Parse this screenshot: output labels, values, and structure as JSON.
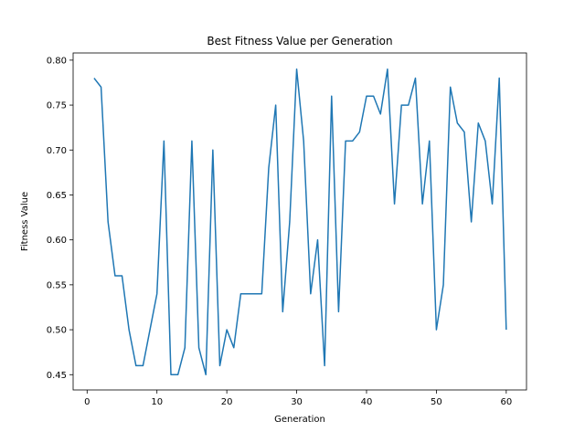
{
  "chart_data": {
    "type": "line",
    "title": "Best Fitness Value per Generation",
    "xlabel": "Generation",
    "ylabel": "Fitness Value",
    "xlim": [
      -2,
      62.9
    ],
    "ylim": [
      0.433,
      0.808
    ],
    "xticks": [
      0,
      10,
      20,
      30,
      40,
      50,
      60
    ],
    "xtick_labels": [
      "0",
      "10",
      "20",
      "30",
      "40",
      "50",
      "60"
    ],
    "yticks": [
      0.45,
      0.5,
      0.55,
      0.6,
      0.65,
      0.7,
      0.75,
      0.8
    ],
    "ytick_labels": [
      "0.45",
      "0.50",
      "0.55",
      "0.60",
      "0.65",
      "0.70",
      "0.75",
      "0.80"
    ],
    "grid": false,
    "series": [
      {
        "color": "#1f77b4",
        "x": [
          1,
          2,
          3,
          4,
          5,
          6,
          7,
          8,
          9,
          10,
          11,
          12,
          13,
          14,
          15,
          16,
          17,
          18,
          19,
          20,
          21,
          22,
          23,
          24,
          25,
          26,
          27,
          28,
          29,
          30,
          31,
          32,
          33,
          34,
          35,
          36,
          37,
          38,
          39,
          40,
          41,
          42,
          43,
          44,
          45,
          46,
          47,
          48,
          49,
          50,
          51,
          52,
          53,
          54,
          55,
          56,
          57,
          58,
          59,
          60
        ],
        "y": [
          0.78,
          0.77,
          0.62,
          0.56,
          0.56,
          0.5,
          0.46,
          0.46,
          0.5,
          0.54,
          0.71,
          0.45,
          0.45,
          0.48,
          0.71,
          0.48,
          0.45,
          0.7,
          0.46,
          0.5,
          0.48,
          0.54,
          0.54,
          0.54,
          0.54,
          0.68,
          0.75,
          0.52,
          0.62,
          0.79,
          0.71,
          0.54,
          0.6,
          0.46,
          0.76,
          0.52,
          0.71,
          0.71,
          0.72,
          0.76,
          0.76,
          0.74,
          0.79,
          0.64,
          0.75,
          0.75,
          0.78,
          0.64,
          0.71,
          0.5,
          0.55,
          0.77,
          0.73,
          0.72,
          0.62,
          0.73,
          0.71,
          0.64,
          0.78,
          0.5
        ]
      }
    ]
  }
}
